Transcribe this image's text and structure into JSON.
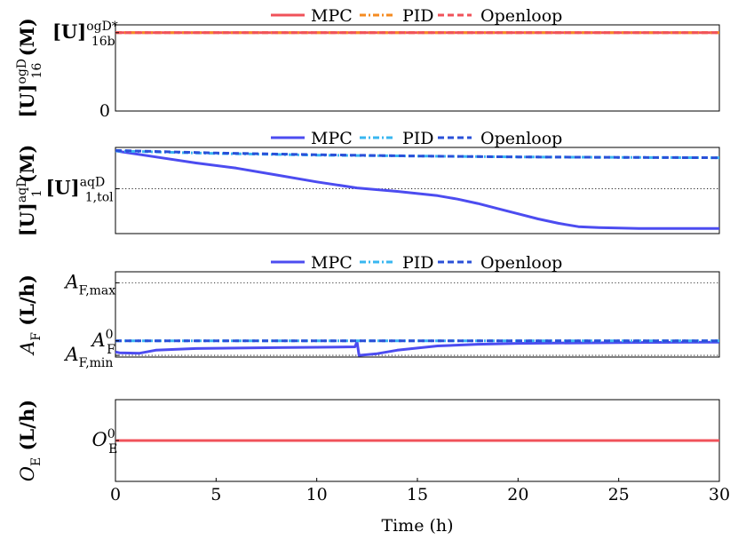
{
  "chart_data": [
    {
      "type": "line",
      "ylabel_base": "[U]",
      "ylabel_sup": "ogD",
      "ylabel_sub": "16",
      "ylabel_unit": "(M)",
      "xlim": [
        0,
        30
      ],
      "ylim": [
        0,
        1.1
      ],
      "grid": false,
      "legend_position": "top-center",
      "yticks": [
        {
          "label_base": "[U]",
          "label_sup": "ogD*",
          "label_sub": "16b",
          "value": 1.0
        },
        {
          "label_base": "0",
          "label_sup": "",
          "label_sub": "",
          "value": 0
        }
      ],
      "hlines": [],
      "series": [
        {
          "name": "MPC",
          "color": "#f0525a",
          "dash": "solid",
          "x": [
            0,
            30
          ],
          "y": [
            1.0,
            1.0
          ]
        },
        {
          "name": "PID",
          "color": "#f58b21",
          "dash": "dashdot",
          "x": [
            0,
            30
          ],
          "y": [
            1.0,
            1.0
          ]
        },
        {
          "name": "Openloop",
          "color": "#f0525a",
          "dash": "dashed",
          "x": [
            0,
            30
          ],
          "y": [
            1.0,
            1.0
          ]
        }
      ]
    },
    {
      "type": "line",
      "ylabel_base": "[U]",
      "ylabel_sup": "aqD",
      "ylabel_sub": "1",
      "ylabel_unit": "(M)",
      "xlim": [
        0,
        30
      ],
      "ylim": [
        0,
        1.0
      ],
      "grid": false,
      "legend_position": "top-center",
      "yticks": [
        {
          "label_base": "[U]",
          "label_sup": "aqD",
          "label_sub": "1,tol",
          "value": 0.52
        }
      ],
      "hlines": [
        0.52
      ],
      "series": [
        {
          "name": "MPC",
          "color": "#4c4cf0",
          "dash": "solid",
          "x": [
            0,
            2,
            4,
            6,
            8,
            10,
            12,
            14,
            16,
            17,
            18,
            19,
            20,
            21,
            22,
            23,
            24,
            25,
            26,
            28,
            30
          ],
          "y": [
            0.96,
            0.89,
            0.82,
            0.76,
            0.68,
            0.6,
            0.53,
            0.49,
            0.44,
            0.4,
            0.35,
            0.29,
            0.23,
            0.17,
            0.12,
            0.08,
            0.07,
            0.065,
            0.06,
            0.06,
            0.06
          ]
        },
        {
          "name": "PID",
          "color": "#39b7f0",
          "dash": "dashdot",
          "x": [
            0,
            5,
            10,
            15,
            20,
            25,
            30
          ],
          "y": [
            0.96,
            0.93,
            0.91,
            0.9,
            0.89,
            0.885,
            0.88
          ]
        },
        {
          "name": "Openloop",
          "color": "#2a50d8",
          "dash": "dashed",
          "x": [
            0,
            5,
            10,
            15,
            20,
            25,
            30
          ],
          "y": [
            0.965,
            0.935,
            0.915,
            0.9,
            0.89,
            0.885,
            0.88
          ]
        }
      ]
    },
    {
      "type": "line",
      "ylabel_base": "A",
      "ylabel_sup": "",
      "ylabel_sub": "F",
      "ylabel_unit": "(L/h)",
      "xlim": [
        0,
        30
      ],
      "ylim": [
        0,
        1.0
      ],
      "grid": false,
      "legend_position": "top-center",
      "yticks": [
        {
          "label_base": "A",
          "label_sup": "",
          "label_sub": "F,max",
          "value": 0.87
        },
        {
          "label_base": "A",
          "label_sup": "0",
          "label_sub": "F",
          "value": 0.19
        },
        {
          "label_base": "A",
          "label_sup": "",
          "label_sub": "F,min",
          "value": 0.02
        }
      ],
      "hlines": [
        0.87,
        0.02
      ],
      "series": [
        {
          "name": "MPC",
          "color": "#4c4cf0",
          "dash": "solid",
          "x": [
            0,
            0.2,
            1.2,
            2,
            4,
            6,
            8,
            10,
            11.9,
            12,
            12.1,
            13,
            14,
            16,
            18,
            20,
            25,
            30
          ],
          "y": [
            0.06,
            0.05,
            0.045,
            0.08,
            0.1,
            0.105,
            0.11,
            0.115,
            0.12,
            0.18,
            0.02,
            0.04,
            0.08,
            0.13,
            0.15,
            0.16,
            0.17,
            0.175
          ]
        },
        {
          "name": "PID",
          "color": "#39b7f0",
          "dash": "dashdot",
          "x": [
            0,
            30
          ],
          "y": [
            0.19,
            0.19
          ]
        },
        {
          "name": "Openloop",
          "color": "#2a50d8",
          "dash": "dashed",
          "x": [
            0,
            30
          ],
          "y": [
            0.19,
            0.19
          ]
        }
      ]
    },
    {
      "type": "line",
      "ylabel_base": "O",
      "ylabel_sup": "",
      "ylabel_sub": "E",
      "ylabel_unit": "(L/h)",
      "xlim": [
        0,
        30
      ],
      "ylim": [
        0,
        1.0
      ],
      "grid": false,
      "legend_position": "none",
      "xlabel": "Time (h)",
      "xticks": [
        0,
        5,
        10,
        15,
        20,
        25,
        30
      ],
      "yticks": [
        {
          "label_base": "O",
          "label_sup": "0",
          "label_sub": "E",
          "value": 0.5
        }
      ],
      "hlines": [],
      "series": [
        {
          "name": "",
          "color": "#f0525a",
          "dash": "solid",
          "x": [
            0,
            30
          ],
          "y": [
            0.5,
            0.5
          ]
        }
      ]
    }
  ]
}
